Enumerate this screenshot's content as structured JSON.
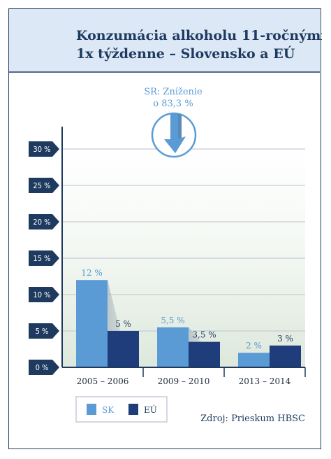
{
  "chart_data": {
    "type": "bar",
    "title": "Konzumácia alkoholu 11-ročnými 1x týždenne – Slovensko a EÚ",
    "title_lines": [
      "Konzumácia alkoholu 11-ročnými",
      "1x týždenne – Slovensko a EÚ"
    ],
    "categories": [
      "2005 – 2006",
      "2009 – 2010",
      "2013 – 2014"
    ],
    "series": [
      {
        "name": "SK",
        "values": [
          12,
          5.5,
          2
        ],
        "labels": [
          "12 %",
          "5,5 %",
          "2 %"
        ],
        "color": "#5b9bd5"
      },
      {
        "name": "EÚ",
        "values": [
          5,
          3.5,
          3
        ],
        "labels": [
          "5 %",
          "3,5 %",
          "3 %"
        ],
        "color": "#1f3d7a"
      }
    ],
    "ylim": [
      0,
      30
    ],
    "yticks": [
      0,
      5,
      10,
      15,
      20,
      25,
      30
    ],
    "ytick_labels": [
      "0 %",
      "5 %",
      "10 %",
      "15 %",
      "20 %",
      "25 %",
      "30 %"
    ],
    "grid": true,
    "legend_position": "bottom-left",
    "annotation": {
      "lines": [
        "SR: Zníženie",
        "o 83,3 %"
      ],
      "icon": "down-arrow-circle-icon"
    },
    "source": "Zdroj: Prieskum HBSC",
    "colors": {
      "header_bg": "#dce8f6",
      "title": "#1f3a5f",
      "tick_badge": "#1f3a5f",
      "grid": "#c5ccd6",
      "annotation": "#5b9bd5",
      "border": "#1f3a5f"
    }
  }
}
